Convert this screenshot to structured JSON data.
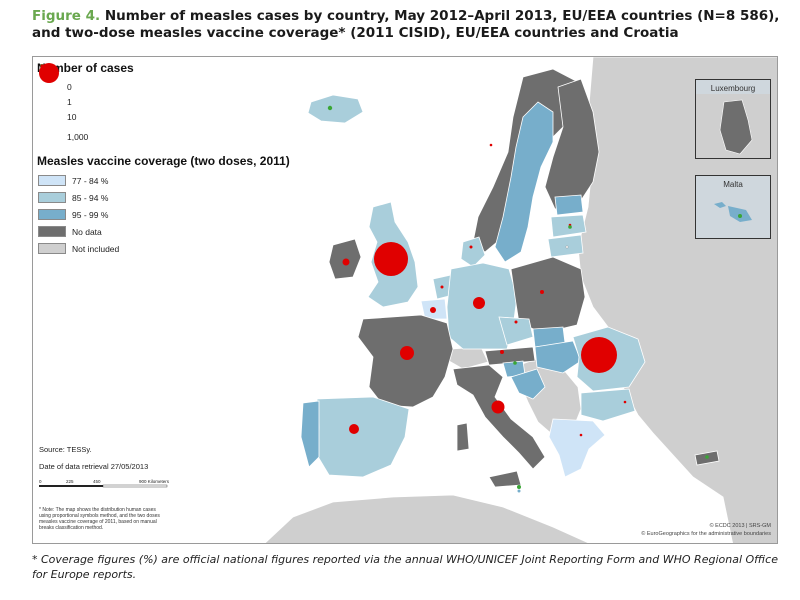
{
  "title": {
    "figure_label": "Figure 4.",
    "text": "Number of measles cases by country, May 2012–April 2013, EU/EEA countries (N=8 586), and two-dose measles vaccine coverage* (2011 CISID), EU/EEA countries and Croatia"
  },
  "legend": {
    "cases_heading": "Number of cases",
    "cases_items": [
      {
        "label": "0",
        "color": "#3aa635"
      },
      {
        "label": "1",
        "color": "#ffffff"
      },
      {
        "label": "10",
        "color": "#d00000"
      },
      {
        "label": "1,000",
        "color": "#e00000"
      }
    ],
    "coverage_heading": "Measles vaccine coverage (two doses, 2011)",
    "coverage_items": [
      {
        "label": "77 - 84 %",
        "color": "#cfe4f7"
      },
      {
        "label": "85 - 94 %",
        "color": "#a9cedb"
      },
      {
        "label": "95 - 99 %",
        "color": "#77aecb"
      },
      {
        "label": "No data",
        "color": "#6e6e6e"
      },
      {
        "label": "Not included",
        "color": "#cfcfcf"
      }
    ]
  },
  "insets": {
    "luxembourg": "Luxembourg",
    "malta": "Malta"
  },
  "source": "Source: TESSy.",
  "retrieval": "Date of data retrieval 27/05/2013",
  "scale": {
    "labels": [
      "0",
      "225",
      "450",
      "900 Kilometers"
    ]
  },
  "note": "* Note: The map shows the distribution human cases using proportional symbols method, and the two doses measles vaccine coverage of 2011, based on manual breaks classification method.",
  "credit_1": "© ECDC 2013 | SRS-GM",
  "credit_2": "© EuroGeographics for the administrative boundaries",
  "footnote": "* Coverage figures (%) are official national figures reported via the annual WHO/UNICEF Joint Reporting Form and WHO Regional Office for Europe reports.",
  "colors": {
    "sea": "#ffffff",
    "non_included": "#cfcfcf",
    "cov_77_84": "#cfe4f7",
    "cov_85_94": "#a9cedb",
    "cov_95_99": "#77aecb",
    "no_data": "#6e6e6e",
    "case_zero": "#3aa635",
    "case_marker": "#e00000"
  }
}
